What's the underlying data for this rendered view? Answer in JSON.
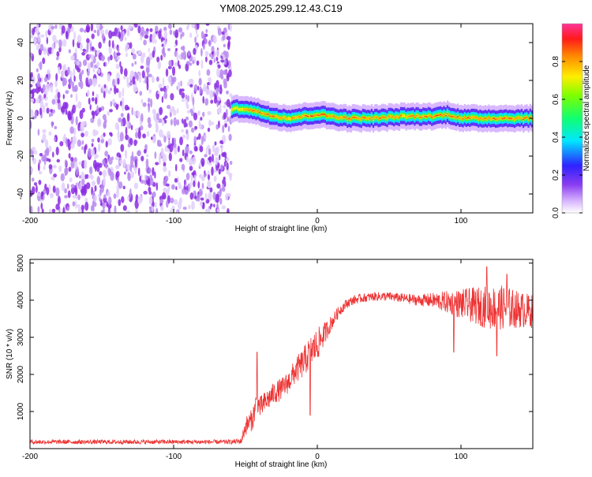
{
  "title": "YM08.2025.299.12.43.C19",
  "chart_data": [
    {
      "type": "heatmap",
      "title": "YM08.2025.299.12.43.C19",
      "xlabel": "Height of straight line (km)",
      "ylabel": "Frequency (Hz)",
      "xlim": [
        -200,
        150
      ],
      "ylim": [
        -50,
        50
      ],
      "x_ticks": [
        -200,
        -100,
        0,
        100
      ],
      "y_ticks": [
        -40,
        -20,
        0,
        20,
        40
      ],
      "x_tick_labels": [
        "-200",
        "-100",
        "0",
        "100"
      ],
      "y_tick_labels": [
        "-40",
        "-20",
        "0",
        "20",
        "40"
      ],
      "noise_region_x": [
        -200,
        -60
      ],
      "signal_band": {
        "x": [
          -60,
          -50,
          -40,
          -30,
          -20,
          -10,
          0,
          10,
          20,
          40,
          60,
          80,
          90,
          100,
          110,
          120,
          140,
          150
        ],
        "center_hz": [
          5,
          5,
          3,
          1,
          0,
          1,
          2,
          1,
          0,
          0,
          1,
          1,
          2,
          0,
          0,
          0,
          0,
          0
        ],
        "peak_amplitude": [
          0.75,
          0.85,
          0.9,
          0.9,
          0.85,
          0.9,
          0.95,
          0.9,
          0.9,
          0.9,
          0.85,
          0.9,
          0.95,
          0.9,
          0.9,
          0.9,
          0.9,
          0.9
        ]
      },
      "colorbar": {
        "label": "Normalized spectral amplitude",
        "range": [
          0,
          1
        ],
        "ticks": [
          0.0,
          0.2,
          0.4,
          0.6,
          0.8
        ],
        "tick_labels": [
          "0.0",
          "0.2",
          "0.4",
          "0.6",
          "0.8"
        ]
      }
    },
    {
      "type": "line",
      "xlabel": "Height of straight line (km)",
      "ylabel": "SNR (10 * v/v)",
      "xlim": [
        -200,
        150
      ],
      "ylim": [
        0,
        5100
      ],
      "x_ticks": [
        -200,
        -100,
        0,
        100
      ],
      "y_ticks": [
        1000,
        2000,
        3000,
        4000,
        5000
      ],
      "x_tick_labels": [
        "-200",
        "-100",
        "0",
        "100"
      ],
      "y_tick_labels": [
        "1000",
        "2000",
        "3000",
        "4000",
        "5000"
      ],
      "series": [
        {
          "name": "SNR",
          "color": "#ee3333",
          "x": [
            -200,
            -150,
            -100,
            -60,
            -53,
            -50,
            -45,
            -42,
            -40,
            -35,
            -30,
            -25,
            -20,
            -15,
            -10,
            -5,
            0,
            5,
            10,
            15,
            20,
            25,
            30,
            40,
            50,
            60,
            70,
            80,
            90,
            100,
            110,
            120,
            130,
            140,
            150
          ],
          "mean": [
            180,
            180,
            180,
            180,
            200,
            600,
            800,
            1300,
            1100,
            1300,
            1500,
            1600,
            1800,
            2100,
            2300,
            2600,
            2800,
            3100,
            3400,
            3700,
            3900,
            4000,
            4050,
            4100,
            4100,
            4050,
            4000,
            4000,
            3950,
            3900,
            3850,
            3800,
            3800,
            3750,
            3700
          ],
          "amplitude": [
            60,
            60,
            60,
            60,
            80,
            250,
            300,
            350,
            300,
            300,
            300,
            300,
            300,
            350,
            400,
            450,
            450,
            300,
            200,
            150,
            130,
            120,
            120,
            120,
            120,
            130,
            150,
            200,
            300,
            400,
            500,
            600,
            600,
            500,
            450
          ],
          "spikes": [
            {
              "x": -42,
              "value": 2600
            },
            {
              "x": -5,
              "value": 900
            },
            {
              "x": 95,
              "value": 2600
            },
            {
              "x": 118,
              "value": 4900
            },
            {
              "x": 125,
              "value": 2500
            },
            {
              "x": 132,
              "value": 4700
            }
          ]
        }
      ]
    }
  ]
}
